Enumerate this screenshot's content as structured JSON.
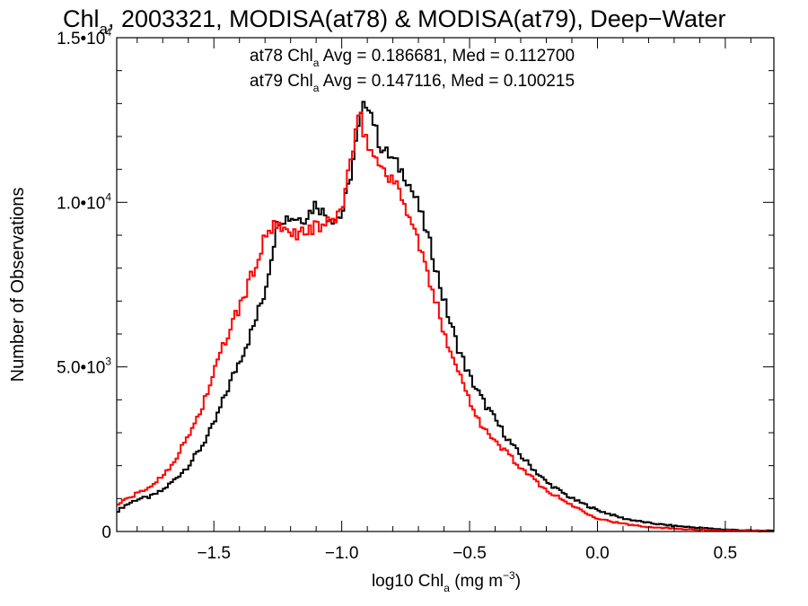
{
  "chart_data": {
    "type": "line",
    "title": {
      "prefix": "Chl",
      "sub": "a",
      "rest": ", 2003321, MODISA(at78) & MODISA(at79), Deep−Water"
    },
    "xlabel": {
      "prefix": "log10 Chl",
      "sub": "a",
      "units": " (mg m",
      "sup": "−3",
      "close": ")"
    },
    "ylabel": "Number of Observations",
    "xlim": [
      -1.88,
      0.69
    ],
    "ylim": [
      0,
      15000
    ],
    "x_ticks": [
      {
        "value": -1.5,
        "label": "−1.5"
      },
      {
        "value": -1.0,
        "label": "−1.0"
      },
      {
        "value": -0.5,
        "label": "−0.5"
      },
      {
        "value": 0.0,
        "label": "0.0"
      },
      {
        "value": 0.5,
        "label": "0.5"
      }
    ],
    "y_ticks": [
      {
        "value": 0,
        "mant": "0",
        "exp": ""
      },
      {
        "value": 5000,
        "mant": "5.0•10",
        "exp": "3"
      },
      {
        "value": 10000,
        "mant": "1.0•10",
        "exp": "4"
      },
      {
        "value": 15000,
        "mant": "1.5•10",
        "exp": "4"
      }
    ],
    "annotations": [
      {
        "prefix": "at78 Chl",
        "sub": "a",
        "rest": " Avg = 0.186681, Med = 0.112700",
        "color": "#000000"
      },
      {
        "prefix": "at79 Chl",
        "sub": "a",
        "rest": " Avg = 0.147116, Med = 0.100215",
        "color": "#ff0000"
      }
    ],
    "grid": false,
    "series": [
      {
        "name": "at78",
        "color": "#000000",
        "step": true,
        "points": [
          [
            -1.88,
            600
          ],
          [
            -1.85,
            780
          ],
          [
            -1.8,
            980
          ],
          [
            -1.75,
            1050
          ],
          [
            -1.7,
            1250
          ],
          [
            -1.65,
            1600
          ],
          [
            -1.6,
            2000
          ],
          [
            -1.55,
            2550
          ],
          [
            -1.5,
            3250
          ],
          [
            -1.45,
            4250
          ],
          [
            -1.4,
            5200
          ],
          [
            -1.35,
            6100
          ],
          [
            -1.3,
            7300
          ],
          [
            -1.27,
            8600
          ],
          [
            -1.25,
            9500
          ],
          [
            -1.2,
            9550
          ],
          [
            -1.15,
            9500
          ],
          [
            -1.12,
            9750
          ],
          [
            -1.1,
            10000
          ],
          [
            -1.07,
            9650
          ],
          [
            -1.03,
            9500
          ],
          [
            -1.0,
            9600
          ],
          [
            -0.97,
            10600
          ],
          [
            -0.94,
            12000
          ],
          [
            -0.92,
            12800
          ],
          [
            -0.9,
            13100
          ],
          [
            -0.88,
            12600
          ],
          [
            -0.85,
            11700
          ],
          [
            -0.8,
            11300
          ],
          [
            -0.75,
            10800
          ],
          [
            -0.7,
            9900
          ],
          [
            -0.65,
            8600
          ],
          [
            -0.6,
            7000
          ],
          [
            -0.55,
            5700
          ],
          [
            -0.5,
            4700
          ],
          [
            -0.45,
            4000
          ],
          [
            -0.4,
            3400
          ],
          [
            -0.35,
            2800
          ],
          [
            -0.3,
            2300
          ],
          [
            -0.25,
            1900
          ],
          [
            -0.2,
            1500
          ],
          [
            -0.1,
            1000
          ],
          [
            0.0,
            650
          ],
          [
            0.1,
            400
          ],
          [
            0.2,
            260
          ],
          [
            0.3,
            170
          ],
          [
            0.4,
            110
          ],
          [
            0.5,
            60
          ],
          [
            0.6,
            30
          ],
          [
            0.69,
            15
          ]
        ]
      },
      {
        "name": "at79",
        "color": "#ff0000",
        "step": true,
        "points": [
          [
            -1.88,
            800
          ],
          [
            -1.85,
            950
          ],
          [
            -1.8,
            1150
          ],
          [
            -1.75,
            1350
          ],
          [
            -1.7,
            1700
          ],
          [
            -1.65,
            2200
          ],
          [
            -1.6,
            2900
          ],
          [
            -1.55,
            3700
          ],
          [
            -1.5,
            4800
          ],
          [
            -1.45,
            5900
          ],
          [
            -1.4,
            6800
          ],
          [
            -1.35,
            7800
          ],
          [
            -1.3,
            8900
          ],
          [
            -1.27,
            9250
          ],
          [
            -1.25,
            9200
          ],
          [
            -1.2,
            9050
          ],
          [
            -1.15,
            9100
          ],
          [
            -1.1,
            9250
          ],
          [
            -1.05,
            9350
          ],
          [
            -1.0,
            9750
          ],
          [
            -0.98,
            10700
          ],
          [
            -0.95,
            11800
          ],
          [
            -0.93,
            12700
          ],
          [
            -0.91,
            12000
          ],
          [
            -0.88,
            11500
          ],
          [
            -0.85,
            11100
          ],
          [
            -0.8,
            10700
          ],
          [
            -0.75,
            9900
          ],
          [
            -0.7,
            8800
          ],
          [
            -0.65,
            7400
          ],
          [
            -0.6,
            6100
          ],
          [
            -0.55,
            5000
          ],
          [
            -0.5,
            4000
          ],
          [
            -0.45,
            3200
          ],
          [
            -0.4,
            2700
          ],
          [
            -0.35,
            2400
          ],
          [
            -0.3,
            1900
          ],
          [
            -0.25,
            1600
          ],
          [
            -0.2,
            1250
          ],
          [
            -0.1,
            800
          ],
          [
            0.0,
            400
          ],
          [
            0.1,
            230
          ],
          [
            0.2,
            140
          ],
          [
            0.3,
            90
          ],
          [
            0.4,
            55
          ],
          [
            0.5,
            30
          ],
          [
            0.6,
            15
          ],
          [
            0.69,
            8
          ]
        ]
      }
    ]
  }
}
